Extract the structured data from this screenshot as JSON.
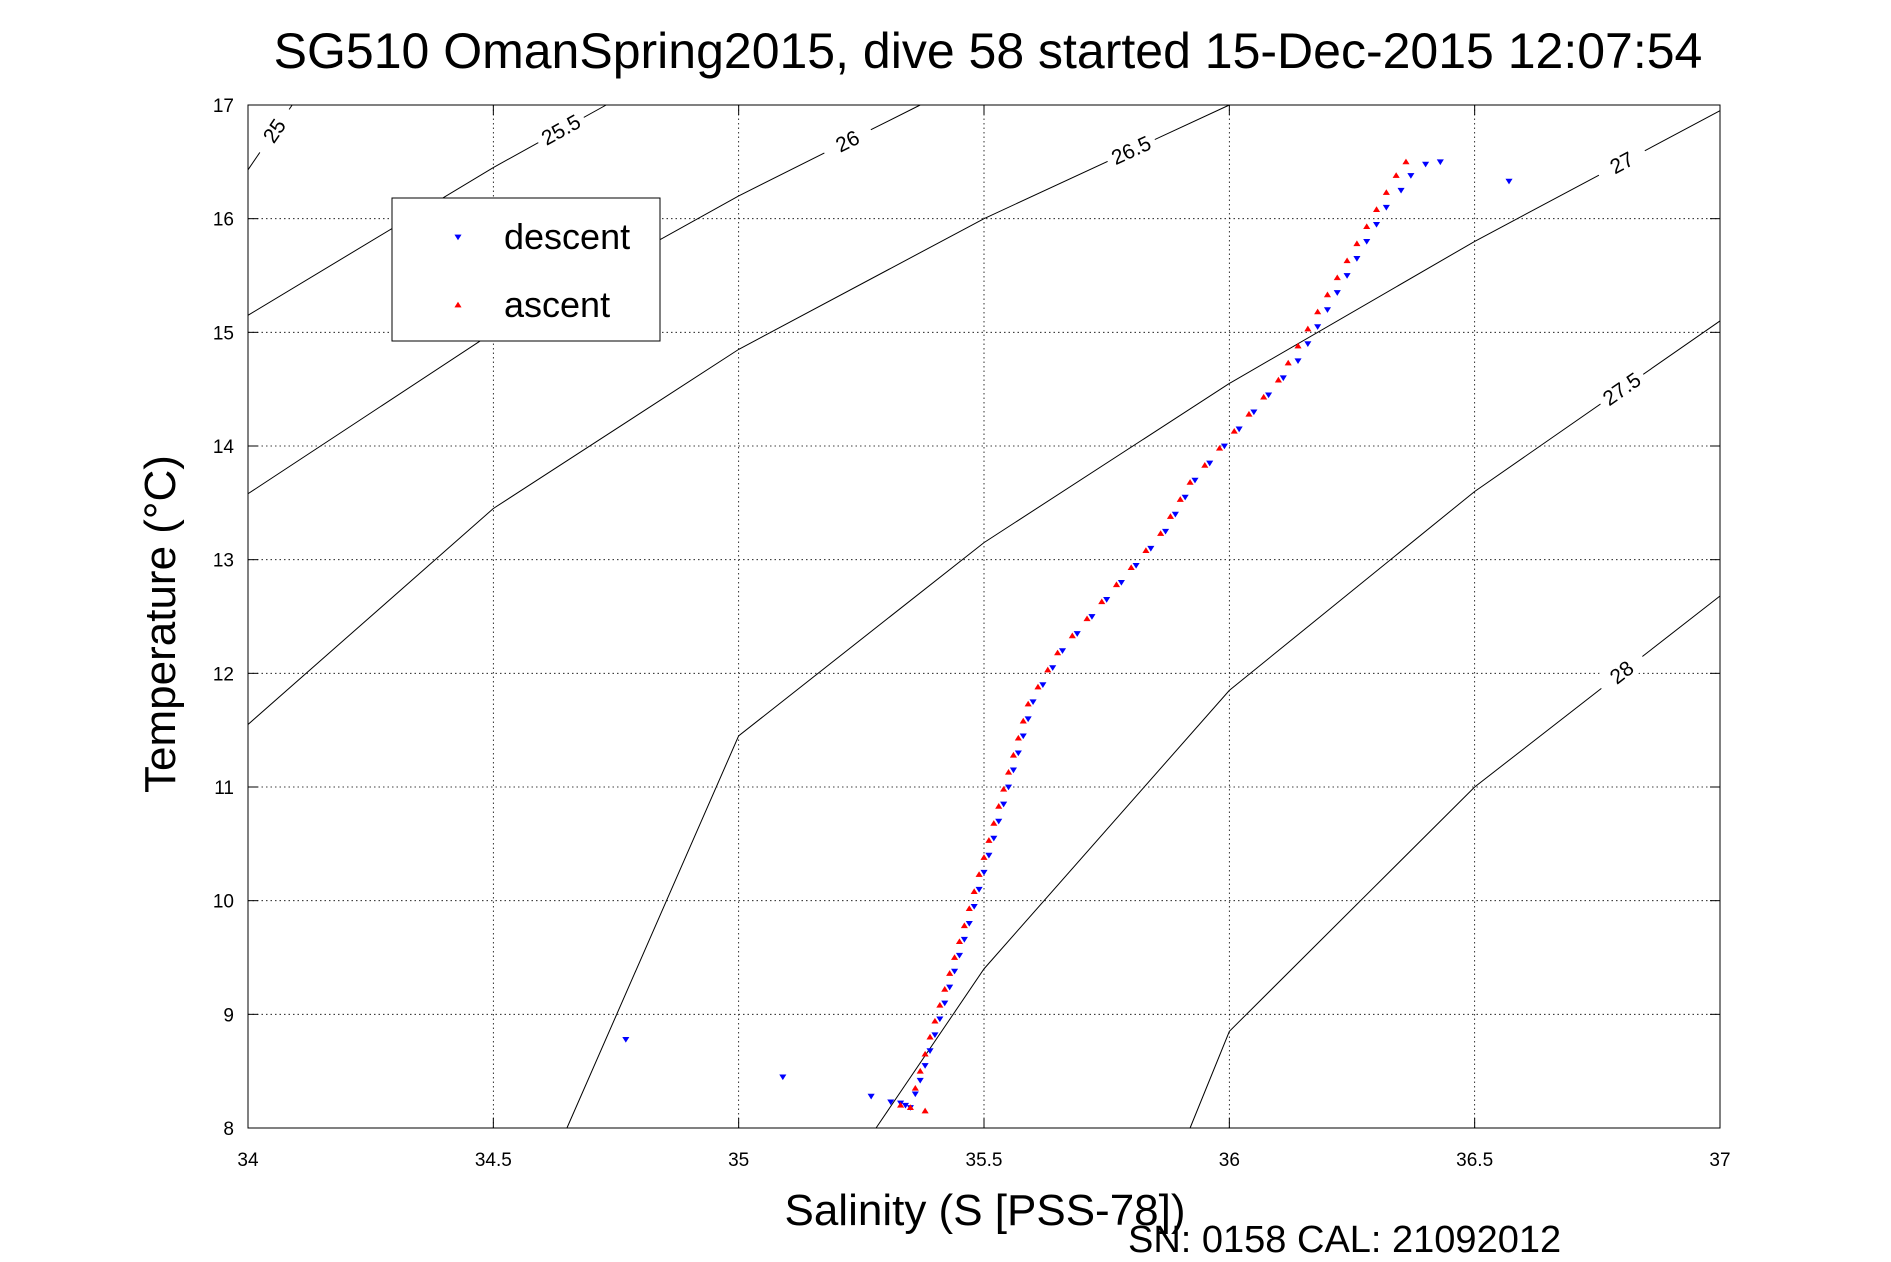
{
  "chart_data": {
    "type": "scatter",
    "title": "SG510 OmanSpring2015, dive 58 started 15-Dec-2015 12:07:54",
    "xlabel": "Salinity (S [PSS-78])",
    "ylabel": "Temperature (°C)",
    "footnote": "SN: 0158  CAL: 21092012",
    "xlim": [
      34,
      37
    ],
    "ylim": [
      8,
      17
    ],
    "xticks": [
      34,
      34.5,
      35,
      35.5,
      36,
      36.5,
      37
    ],
    "xtick_labels": [
      "34",
      "34.5",
      "35",
      "35.5",
      "36",
      "36.5",
      "37"
    ],
    "yticks": [
      8,
      9,
      10,
      11,
      12,
      13,
      14,
      15,
      16,
      17
    ],
    "ytick_labels": [
      "8",
      "9",
      "10",
      "11",
      "12",
      "13",
      "14",
      "15",
      "16",
      "17"
    ],
    "grid": true,
    "legend": {
      "placement": "top-left"
    },
    "series": [
      {
        "name": "descent",
        "color": "#0000ff",
        "marker": "triangle-down",
        "points": [
          [
            34.77,
            8.78
          ],
          [
            35.09,
            8.45
          ],
          [
            35.27,
            8.28
          ],
          [
            35.31,
            8.23
          ],
          [
            35.33,
            8.22
          ],
          [
            35.34,
            8.2
          ],
          [
            35.35,
            8.18
          ],
          [
            35.36,
            8.3
          ],
          [
            35.37,
            8.42
          ],
          [
            35.38,
            8.55
          ],
          [
            35.39,
            8.68
          ],
          [
            35.4,
            8.82
          ],
          [
            35.41,
            8.96
          ],
          [
            35.42,
            9.1
          ],
          [
            35.43,
            9.24
          ],
          [
            35.44,
            9.38
          ],
          [
            35.45,
            9.52
          ],
          [
            35.46,
            9.66
          ],
          [
            35.47,
            9.8
          ],
          [
            35.48,
            9.95
          ],
          [
            35.49,
            10.1
          ],
          [
            35.5,
            10.25
          ],
          [
            35.51,
            10.4
          ],
          [
            35.52,
            10.55
          ],
          [
            35.53,
            10.7
          ],
          [
            35.54,
            10.85
          ],
          [
            35.55,
            11.0
          ],
          [
            35.56,
            11.15
          ],
          [
            35.57,
            11.3
          ],
          [
            35.58,
            11.45
          ],
          [
            35.59,
            11.6
          ],
          [
            35.6,
            11.75
          ],
          [
            35.62,
            11.9
          ],
          [
            35.64,
            12.05
          ],
          [
            35.66,
            12.2
          ],
          [
            35.69,
            12.35
          ],
          [
            35.72,
            12.5
          ],
          [
            35.75,
            12.65
          ],
          [
            35.78,
            12.8
          ],
          [
            35.81,
            12.95
          ],
          [
            35.84,
            13.1
          ],
          [
            35.87,
            13.25
          ],
          [
            35.89,
            13.4
          ],
          [
            35.91,
            13.55
          ],
          [
            35.93,
            13.7
          ],
          [
            35.96,
            13.85
          ],
          [
            35.99,
            14.0
          ],
          [
            36.02,
            14.15
          ],
          [
            36.05,
            14.3
          ],
          [
            36.08,
            14.45
          ],
          [
            36.11,
            14.6
          ],
          [
            36.14,
            14.75
          ],
          [
            36.16,
            14.9
          ],
          [
            36.18,
            15.05
          ],
          [
            36.2,
            15.2
          ],
          [
            36.22,
            15.35
          ],
          [
            36.24,
            15.5
          ],
          [
            36.26,
            15.65
          ],
          [
            36.28,
            15.8
          ],
          [
            36.3,
            15.95
          ],
          [
            36.32,
            16.1
          ],
          [
            36.35,
            16.25
          ],
          [
            36.37,
            16.38
          ],
          [
            36.4,
            16.48
          ],
          [
            36.43,
            16.5
          ],
          [
            36.57,
            16.33
          ]
        ]
      },
      {
        "name": "ascent",
        "color": "#ff0000",
        "marker": "triangle-up",
        "points": [
          [
            35.33,
            8.2
          ],
          [
            35.35,
            8.18
          ],
          [
            35.38,
            8.15
          ],
          [
            35.36,
            8.35
          ],
          [
            35.37,
            8.5
          ],
          [
            35.38,
            8.65
          ],
          [
            35.39,
            8.8
          ],
          [
            35.4,
            8.94
          ],
          [
            35.41,
            9.08
          ],
          [
            35.42,
            9.22
          ],
          [
            35.43,
            9.36
          ],
          [
            35.44,
            9.5
          ],
          [
            35.45,
            9.64
          ],
          [
            35.46,
            9.78
          ],
          [
            35.47,
            9.93
          ],
          [
            35.48,
            10.08
          ],
          [
            35.49,
            10.23
          ],
          [
            35.5,
            10.38
          ],
          [
            35.51,
            10.53
          ],
          [
            35.52,
            10.68
          ],
          [
            35.53,
            10.83
          ],
          [
            35.54,
            10.98
          ],
          [
            35.55,
            11.13
          ],
          [
            35.56,
            11.28
          ],
          [
            35.57,
            11.43
          ],
          [
            35.58,
            11.58
          ],
          [
            35.59,
            11.73
          ],
          [
            35.61,
            11.88
          ],
          [
            35.63,
            12.03
          ],
          [
            35.65,
            12.18
          ],
          [
            35.68,
            12.33
          ],
          [
            35.71,
            12.48
          ],
          [
            35.74,
            12.63
          ],
          [
            35.77,
            12.78
          ],
          [
            35.8,
            12.93
          ],
          [
            35.83,
            13.08
          ],
          [
            35.86,
            13.23
          ],
          [
            35.88,
            13.38
          ],
          [
            35.9,
            13.53
          ],
          [
            35.92,
            13.68
          ],
          [
            35.95,
            13.83
          ],
          [
            35.98,
            13.98
          ],
          [
            36.01,
            14.13
          ],
          [
            36.04,
            14.28
          ],
          [
            36.07,
            14.43
          ],
          [
            36.1,
            14.58
          ],
          [
            36.12,
            14.73
          ],
          [
            36.14,
            14.88
          ],
          [
            36.16,
            15.03
          ],
          [
            36.18,
            15.18
          ],
          [
            36.2,
            15.33
          ],
          [
            36.22,
            15.48
          ],
          [
            36.24,
            15.63
          ],
          [
            36.26,
            15.78
          ],
          [
            36.28,
            15.93
          ],
          [
            36.3,
            16.08
          ],
          [
            36.32,
            16.23
          ],
          [
            36.34,
            16.38
          ],
          [
            36.36,
            16.5
          ]
        ]
      }
    ],
    "density_contours": [
      {
        "label": "25",
        "points": [
          [
            34.09,
            17.0
          ],
          [
            34.0,
            16.43
          ]
        ]
      },
      {
        "label": "25.5",
        "points": [
          [
            34.73,
            17.0
          ],
          [
            34.5,
            16.45
          ],
          [
            34.0,
            15.15
          ],
          [
            34.0,
            13.62
          ]
        ]
      },
      {
        "label": "26",
        "points": [
          [
            35.37,
            17.0
          ],
          [
            35.0,
            16.2
          ],
          [
            34.5,
            15.0
          ],
          [
            34.0,
            13.58
          ],
          [
            34.0,
            10.85
          ]
        ]
      },
      {
        "label": "26.5",
        "points": [
          [
            36.0,
            17.0
          ],
          [
            35.5,
            16.0
          ],
          [
            35.0,
            14.85
          ],
          [
            34.5,
            13.45
          ],
          [
            34.0,
            11.55
          ],
          [
            34.0,
            8.0
          ]
        ]
      },
      {
        "label": "27",
        "points": [
          [
            37.0,
            16.95
          ],
          [
            36.5,
            15.8
          ],
          [
            36.0,
            14.55
          ],
          [
            35.5,
            13.15
          ],
          [
            35.0,
            11.45
          ],
          [
            34.65,
            8.0
          ]
        ]
      },
      {
        "label": "27.5",
        "points": [
          [
            37.0,
            15.1
          ],
          [
            36.5,
            13.6
          ],
          [
            36.0,
            11.85
          ],
          [
            35.5,
            9.4
          ],
          [
            35.28,
            8.0
          ]
        ]
      },
      {
        "label": "28",
        "points": [
          [
            37.0,
            12.68
          ],
          [
            36.5,
            11.0
          ],
          [
            36.0,
            8.85
          ],
          [
            35.92,
            8.0
          ]
        ]
      }
    ]
  }
}
